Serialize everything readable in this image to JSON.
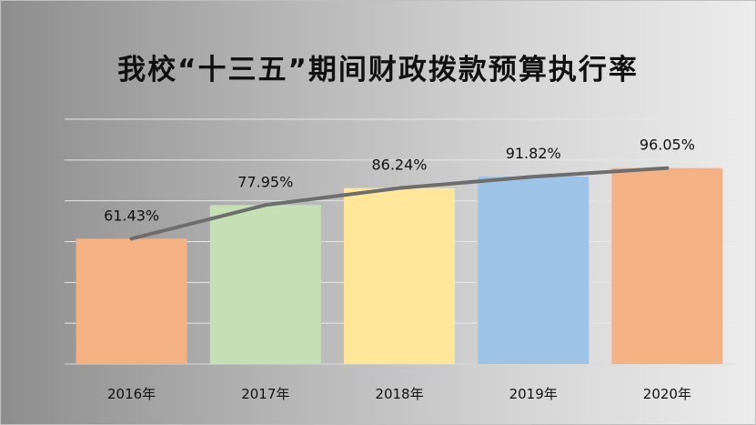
{
  "chart_data": {
    "type": "bar",
    "title": "我校“十三五”期间财政拨款预算执行率",
    "categories": [
      "2016年",
      "2017年",
      "2018年",
      "2019年",
      "2020年"
    ],
    "values": [
      61.43,
      77.95,
      86.24,
      91.82,
      96.05
    ],
    "data_labels": [
      "61.43%",
      "77.95%",
      "86.24%",
      "91.82%",
      "96.05%"
    ],
    "bar_colors": [
      "#f4b183",
      "#c5e0b4",
      "#ffe699",
      "#9dc3e6",
      "#f4b183"
    ],
    "line": {
      "values": [
        61.43,
        77.95,
        86.24,
        91.82,
        96.05
      ],
      "color": "#6d6d6d"
    },
    "ylim": [
      0,
      120
    ],
    "y_gridlines": [
      0,
      20,
      40,
      60,
      80,
      100,
      120
    ],
    "grid": true,
    "legend": "none"
  }
}
